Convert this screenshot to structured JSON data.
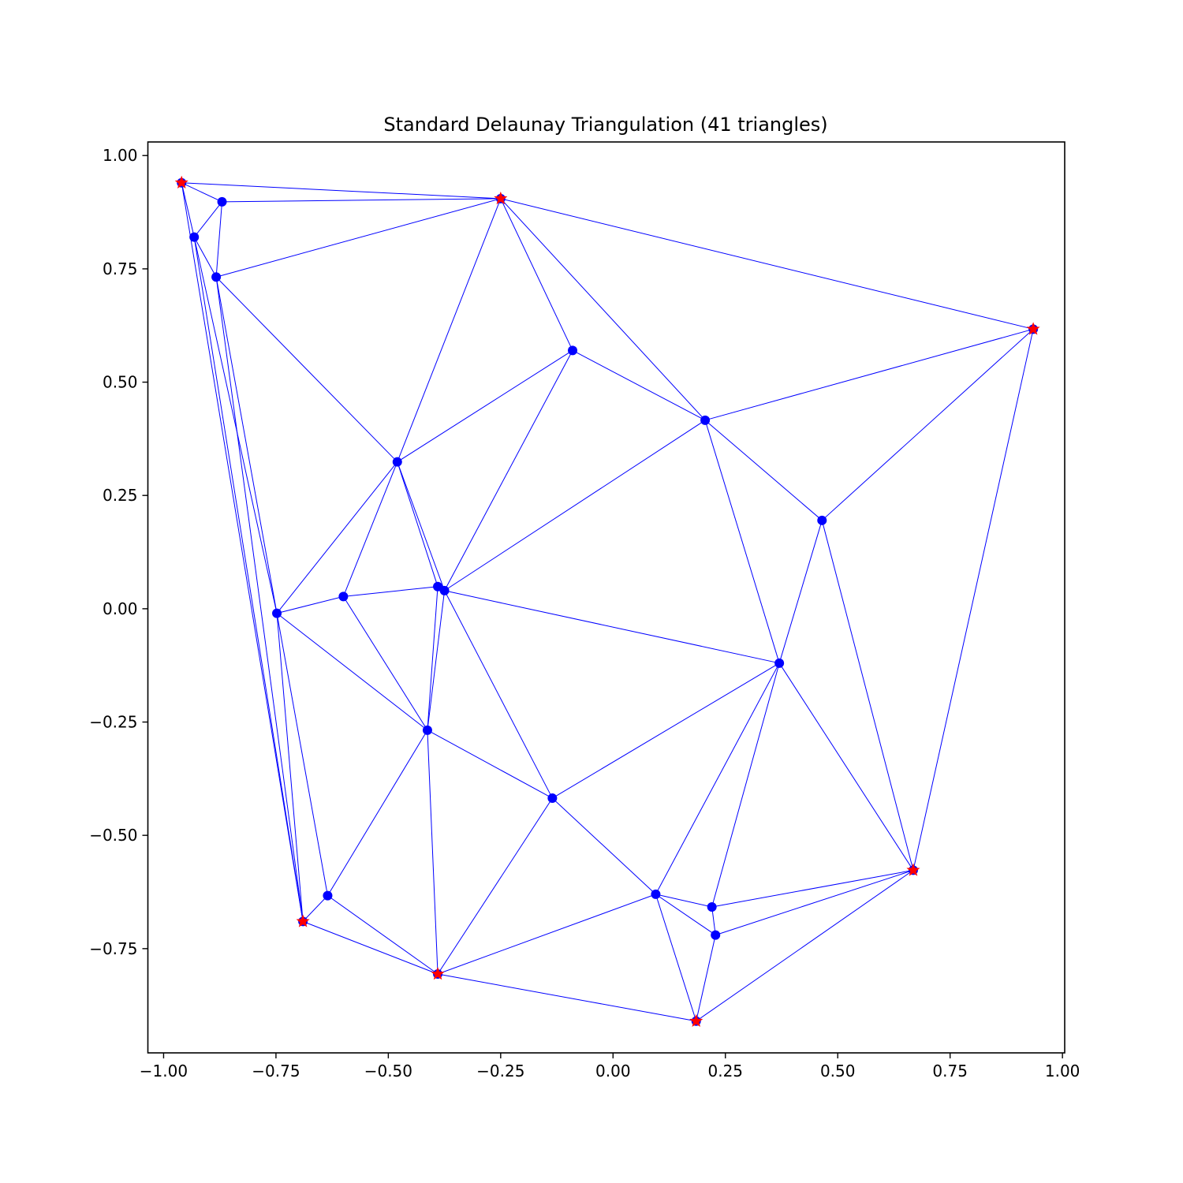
{
  "chart_data": {
    "type": "scatter",
    "title": "Standard Delaunay Triangulation (41 triangles)",
    "xlabel": "",
    "ylabel": "",
    "xlim": [
      -1.035,
      1.005
    ],
    "ylim": [
      -0.98,
      1.03
    ],
    "grid": false,
    "x_ticks": [
      -1.0,
      -0.75,
      -0.5,
      -0.25,
      0.0,
      0.25,
      0.5,
      0.75,
      1.0
    ],
    "x_tick_labels": [
      "−1.00",
      "−0.75",
      "−0.50",
      "−0.25",
      "0.00",
      "0.25",
      "0.50",
      "0.75",
      "1.00"
    ],
    "y_ticks": [
      -0.75,
      -0.5,
      -0.25,
      0.0,
      0.25,
      0.5,
      0.75,
      1.0
    ],
    "y_tick_labels": [
      "−0.75",
      "−0.50",
      "−0.25",
      "0.00",
      "0.25",
      "0.50",
      "0.75",
      "1.00"
    ],
    "colors": {
      "edge": "#0000ff",
      "point": "#0000ff",
      "hull_star": "#ff0000",
      "frame": "#000000"
    },
    "points": [
      {
        "x": -0.96,
        "y": 0.94
      },
      {
        "x": -0.25,
        "y": 0.905
      },
      {
        "x": 0.935,
        "y": 0.617
      },
      {
        "x": 0.668,
        "y": -0.577
      },
      {
        "x": 0.185,
        "y": -0.91
      },
      {
        "x": -0.39,
        "y": -0.806
      },
      {
        "x": -0.69,
        "y": -0.69
      },
      {
        "x": -0.87,
        "y": 0.898
      },
      {
        "x": -0.932,
        "y": 0.82
      },
      {
        "x": -0.883,
        "y": 0.732
      },
      {
        "x": -0.09,
        "y": 0.57
      },
      {
        "x": 0.205,
        "y": 0.416
      },
      {
        "x": -0.48,
        "y": 0.324
      },
      {
        "x": 0.465,
        "y": 0.195
      },
      {
        "x": -0.39,
        "y": 0.049
      },
      {
        "x": -0.375,
        "y": 0.04
      },
      {
        "x": -0.6,
        "y": 0.027
      },
      {
        "x": -0.748,
        "y": -0.01
      },
      {
        "x": 0.37,
        "y": -0.12
      },
      {
        "x": -0.413,
        "y": -0.268
      },
      {
        "x": -0.135,
        "y": -0.418
      },
      {
        "x": -0.635,
        "y": -0.633
      },
      {
        "x": 0.095,
        "y": -0.63
      },
      {
        "x": 0.22,
        "y": -0.658
      },
      {
        "x": 0.228,
        "y": -0.72
      }
    ],
    "hull_points": [
      0,
      1,
      2,
      3,
      4,
      5,
      6
    ],
    "edges": [
      [
        0,
        1
      ],
      [
        0,
        7
      ],
      [
        0,
        8
      ],
      [
        7,
        8
      ],
      [
        7,
        1
      ],
      [
        8,
        9
      ],
      [
        7,
        9
      ],
      [
        9,
        1
      ],
      [
        1,
        2
      ],
      [
        1,
        10
      ],
      [
        1,
        11
      ],
      [
        1,
        12
      ],
      [
        9,
        12
      ],
      [
        8,
        17
      ],
      [
        8,
        6
      ],
      [
        0,
        6
      ],
      [
        9,
        6
      ],
      [
        9,
        17
      ],
      [
        10,
        12
      ],
      [
        10,
        11
      ],
      [
        10,
        15
      ],
      [
        11,
        2
      ],
      [
        11,
        13
      ],
      [
        11,
        18
      ],
      [
        11,
        15
      ],
      [
        13,
        2
      ],
      [
        13,
        18
      ],
      [
        13,
        3
      ],
      [
        2,
        3
      ],
      [
        12,
        17
      ],
      [
        12,
        16
      ],
      [
        12,
        14
      ],
      [
        12,
        15
      ],
      [
        14,
        15
      ],
      [
        16,
        14
      ],
      [
        17,
        16
      ],
      [
        14,
        19
      ],
      [
        15,
        19
      ],
      [
        16,
        19
      ],
      [
        15,
        18
      ],
      [
        15,
        20
      ],
      [
        17,
        19
      ],
      [
        17,
        21
      ],
      [
        17,
        6
      ],
      [
        21,
        6
      ],
      [
        21,
        19
      ],
      [
        21,
        5
      ],
      [
        6,
        5
      ],
      [
        19,
        5
      ],
      [
        19,
        20
      ],
      [
        20,
        5
      ],
      [
        20,
        18
      ],
      [
        20,
        22
      ],
      [
        18,
        22
      ],
      [
        18,
        23
      ],
      [
        18,
        3
      ],
      [
        22,
        5
      ],
      [
        22,
        23
      ],
      [
        22,
        24
      ],
      [
        22,
        4
      ],
      [
        23,
        24
      ],
      [
        23,
        3
      ],
      [
        24,
        3
      ],
      [
        24,
        4
      ],
      [
        4,
        3
      ],
      [
        5,
        4
      ]
    ]
  }
}
